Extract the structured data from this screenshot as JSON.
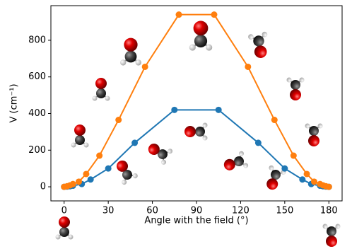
{
  "chart_data": {
    "type": "line",
    "xlabel": "Angle with the field (°)",
    "ylabel": "V (cm⁻¹)",
    "xlim": [
      -9,
      189
    ],
    "xticks": [
      0,
      30,
      60,
      90,
      120,
      150,
      180
    ],
    "ylim": [
      -77,
      989
    ],
    "yticks": [
      0,
      200,
      400,
      600,
      800
    ],
    "series": [
      {
        "color": "#1f77b4",
        "x": [
          0,
          2,
          4,
          6,
          12,
          18,
          30,
          48,
          75,
          105,
          132,
          150,
          162,
          168,
          174,
          176,
          178,
          180
        ],
        "values": [
          0,
          1,
          3,
          6,
          15,
          40,
          100,
          240,
          420,
          420,
          240,
          100,
          40,
          15,
          6,
          3,
          1,
          0
        ]
      },
      {
        "color": "#ff7f0e",
        "x": [
          0,
          2,
          4,
          6,
          10,
          15,
          24,
          37,
          55,
          78,
          102,
          125,
          143,
          156,
          165,
          170,
          174,
          176,
          178,
          180
        ],
        "values": [
          0,
          3,
          8,
          15,
          28,
          70,
          170,
          365,
          655,
          940,
          940,
          655,
          365,
          170,
          70,
          28,
          15,
          8,
          3,
          0
        ]
      }
    ]
  }
}
